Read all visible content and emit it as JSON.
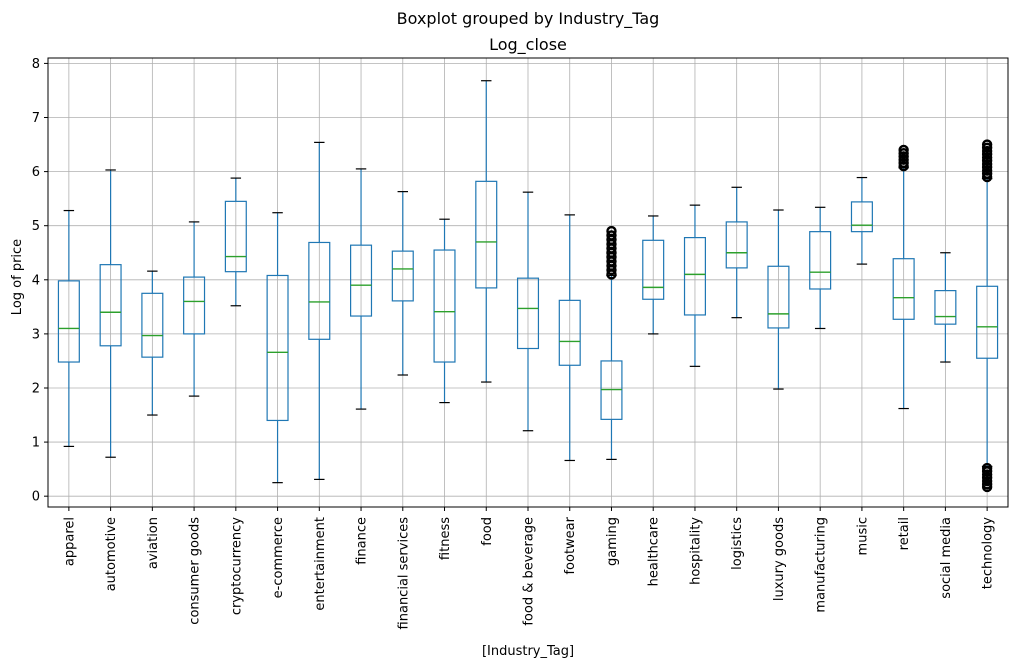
{
  "chart_data": {
    "type": "boxplot",
    "suptitle": "Boxplot grouped by Industry_Tag",
    "title": "Log_close",
    "xlabel": "[Industry_Tag]",
    "ylabel": "Log of price",
    "ylim": [
      -0.2,
      8.1
    ],
    "yticks": [
      0,
      1,
      2,
      3,
      4,
      5,
      6,
      7,
      8
    ],
    "grid": true,
    "colors": {
      "box": "#1f77b4",
      "median": "#2ca02c",
      "whisker_cap": "#000000",
      "outlier": "#000000",
      "grid": "#b0b0b0"
    },
    "categories": [
      "apparel",
      "automotive",
      "aviation",
      "consumer goods",
      "cryptocurrency",
      "e-commerce",
      "entertainment",
      "finance",
      "financial services",
      "fitness",
      "food",
      "food & beverage",
      "footwear",
      "gaming",
      "healthcare",
      "hospitality",
      "logistics",
      "luxury goods",
      "manufacturing",
      "music",
      "retail",
      "social media",
      "technology"
    ],
    "boxes": [
      {
        "min": 0.92,
        "q1": 2.48,
        "median": 3.1,
        "q3": 3.98,
        "max": 5.28,
        "outliers": []
      },
      {
        "min": 0.72,
        "q1": 2.78,
        "median": 3.4,
        "q3": 4.28,
        "max": 6.03,
        "outliers": []
      },
      {
        "min": 1.5,
        "q1": 2.57,
        "median": 2.97,
        "q3": 3.75,
        "max": 4.16,
        "outliers": []
      },
      {
        "min": 1.85,
        "q1": 3.0,
        "median": 3.6,
        "q3": 4.05,
        "max": 5.07,
        "outliers": []
      },
      {
        "min": 3.52,
        "q1": 4.15,
        "median": 4.43,
        "q3": 5.45,
        "max": 5.88,
        "outliers": []
      },
      {
        "min": 0.25,
        "q1": 1.4,
        "median": 2.66,
        "q3": 4.08,
        "max": 5.24,
        "outliers": []
      },
      {
        "min": 0.31,
        "q1": 2.9,
        "median": 3.59,
        "q3": 4.69,
        "max": 6.54,
        "outliers": []
      },
      {
        "min": 1.61,
        "q1": 3.33,
        "median": 3.9,
        "q3": 4.64,
        "max": 6.05,
        "outliers": []
      },
      {
        "min": 2.24,
        "q1": 3.61,
        "median": 4.2,
        "q3": 4.53,
        "max": 5.63,
        "outliers": []
      },
      {
        "min": 1.73,
        "q1": 2.48,
        "median": 3.41,
        "q3": 4.55,
        "max": 5.12,
        "outliers": []
      },
      {
        "min": 2.11,
        "q1": 3.85,
        "median": 4.7,
        "q3": 5.82,
        "max": 7.68,
        "outliers": []
      },
      {
        "min": 1.21,
        "q1": 2.73,
        "median": 3.47,
        "q3": 4.03,
        "max": 5.62,
        "outliers": []
      },
      {
        "min": 0.66,
        "q1": 2.42,
        "median": 2.86,
        "q3": 3.62,
        "max": 5.2,
        "outliers": []
      },
      {
        "min": 0.68,
        "q1": 1.42,
        "median": 1.97,
        "q3": 2.5,
        "max": 4.08,
        "outliers": [
          4.1,
          4.18,
          4.26,
          4.34,
          4.42,
          4.5,
          4.58,
          4.66,
          4.74,
          4.82,
          4.9
        ]
      },
      {
        "min": 3.0,
        "q1": 3.64,
        "median": 3.86,
        "q3": 4.73,
        "max": 5.18,
        "outliers": []
      },
      {
        "min": 2.4,
        "q1": 3.35,
        "median": 4.1,
        "q3": 4.78,
        "max": 5.38,
        "outliers": []
      },
      {
        "min": 3.3,
        "q1": 4.22,
        "median": 4.5,
        "q3": 5.07,
        "max": 5.71,
        "outliers": []
      },
      {
        "min": 1.98,
        "q1": 3.11,
        "median": 3.37,
        "q3": 4.25,
        "max": 5.29,
        "outliers": []
      },
      {
        "min": 3.1,
        "q1": 3.83,
        "median": 4.14,
        "q3": 4.89,
        "max": 5.34,
        "outliers": []
      },
      {
        "min": 4.29,
        "q1": 4.89,
        "median": 5.01,
        "q3": 5.44,
        "max": 5.89,
        "outliers": []
      },
      {
        "min": 1.62,
        "q1": 3.27,
        "median": 3.67,
        "q3": 4.39,
        "max": 6.07,
        "outliers": [
          6.1,
          6.16,
          6.22,
          6.28,
          6.34,
          6.4
        ]
      },
      {
        "min": 2.48,
        "q1": 3.18,
        "median": 3.32,
        "q3": 3.8,
        "max": 4.5,
        "outliers": []
      },
      {
        "min": 0.55,
        "q1": 2.55,
        "median": 3.13,
        "q3": 3.88,
        "max": 5.87,
        "outliers": [
          5.9,
          5.96,
          6.02,
          6.08,
          6.14,
          6.2,
          6.26,
          6.32,
          6.38,
          6.44,
          6.5,
          0.52,
          0.46,
          0.4,
          0.34,
          0.28,
          0.22,
          0.17
        ]
      }
    ]
  }
}
